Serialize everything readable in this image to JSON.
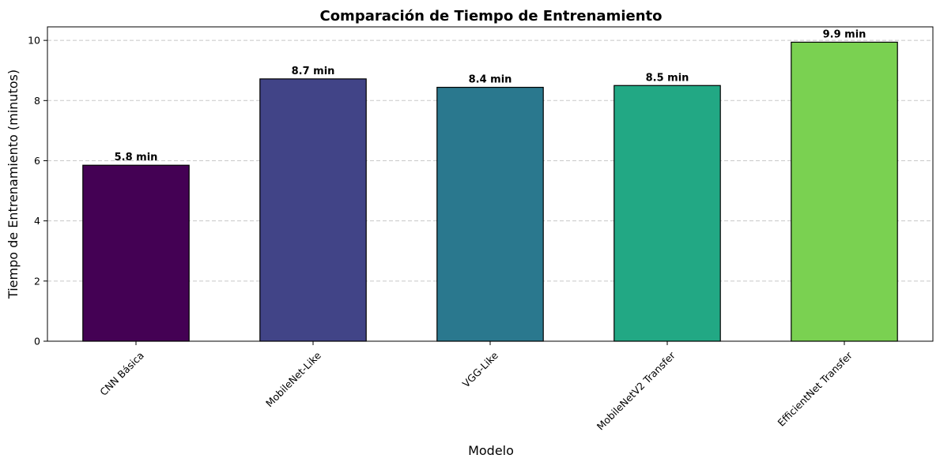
{
  "chart_data": {
    "type": "bar",
    "title": "Comparación de Tiempo de Entrenamiento",
    "xlabel": "Modelo",
    "ylabel": "Tiempo de Entrenamiento (minutos)",
    "categories": [
      "CNN Básica",
      "MobileNet-Like",
      "VGG-Like",
      "MobileNetV2 Transfer",
      "EfficientNet Transfer"
    ],
    "values": [
      5.85,
      8.72,
      8.44,
      8.5,
      9.94
    ],
    "data_labels": [
      "5.8 min",
      "8.7 min",
      "8.4 min",
      "8.5 min",
      "9.9 min"
    ],
    "colors": [
      "#440154",
      "#414487",
      "#2a788e",
      "#22a884",
      "#7ad151"
    ],
    "ylim": [
      0,
      10.45
    ],
    "yticks": [
      0,
      2,
      4,
      6,
      8,
      10
    ],
    "grid": "y-dashed",
    "legend": "none"
  }
}
